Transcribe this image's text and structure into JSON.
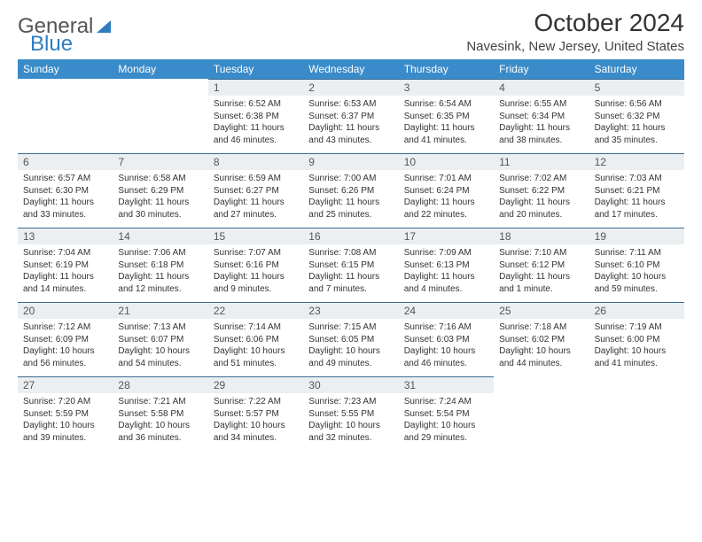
{
  "logo": {
    "part1": "General",
    "part2": "Blue"
  },
  "title": "October 2024",
  "location": "Navesink, New Jersey, United States",
  "colors": {
    "header_bg": "#3a8bc9",
    "header_text": "#ffffff",
    "daynum_bg": "#eceff1",
    "daynum_border": "#3a6c95",
    "text": "#333333",
    "logo_gray": "#555555",
    "logo_blue": "#2f7cc0"
  },
  "days_of_week": [
    "Sunday",
    "Monday",
    "Tuesday",
    "Wednesday",
    "Thursday",
    "Friday",
    "Saturday"
  ],
  "weeks": [
    [
      null,
      null,
      {
        "n": "1",
        "sunrise": "Sunrise: 6:52 AM",
        "sunset": "Sunset: 6:38 PM",
        "daylight": "Daylight: 11 hours and 46 minutes."
      },
      {
        "n": "2",
        "sunrise": "Sunrise: 6:53 AM",
        "sunset": "Sunset: 6:37 PM",
        "daylight": "Daylight: 11 hours and 43 minutes."
      },
      {
        "n": "3",
        "sunrise": "Sunrise: 6:54 AM",
        "sunset": "Sunset: 6:35 PM",
        "daylight": "Daylight: 11 hours and 41 minutes."
      },
      {
        "n": "4",
        "sunrise": "Sunrise: 6:55 AM",
        "sunset": "Sunset: 6:34 PM",
        "daylight": "Daylight: 11 hours and 38 minutes."
      },
      {
        "n": "5",
        "sunrise": "Sunrise: 6:56 AM",
        "sunset": "Sunset: 6:32 PM",
        "daylight": "Daylight: 11 hours and 35 minutes."
      }
    ],
    [
      {
        "n": "6",
        "sunrise": "Sunrise: 6:57 AM",
        "sunset": "Sunset: 6:30 PM",
        "daylight": "Daylight: 11 hours and 33 minutes."
      },
      {
        "n": "7",
        "sunrise": "Sunrise: 6:58 AM",
        "sunset": "Sunset: 6:29 PM",
        "daylight": "Daylight: 11 hours and 30 minutes."
      },
      {
        "n": "8",
        "sunrise": "Sunrise: 6:59 AM",
        "sunset": "Sunset: 6:27 PM",
        "daylight": "Daylight: 11 hours and 27 minutes."
      },
      {
        "n": "9",
        "sunrise": "Sunrise: 7:00 AM",
        "sunset": "Sunset: 6:26 PM",
        "daylight": "Daylight: 11 hours and 25 minutes."
      },
      {
        "n": "10",
        "sunrise": "Sunrise: 7:01 AM",
        "sunset": "Sunset: 6:24 PM",
        "daylight": "Daylight: 11 hours and 22 minutes."
      },
      {
        "n": "11",
        "sunrise": "Sunrise: 7:02 AM",
        "sunset": "Sunset: 6:22 PM",
        "daylight": "Daylight: 11 hours and 20 minutes."
      },
      {
        "n": "12",
        "sunrise": "Sunrise: 7:03 AM",
        "sunset": "Sunset: 6:21 PM",
        "daylight": "Daylight: 11 hours and 17 minutes."
      }
    ],
    [
      {
        "n": "13",
        "sunrise": "Sunrise: 7:04 AM",
        "sunset": "Sunset: 6:19 PM",
        "daylight": "Daylight: 11 hours and 14 minutes."
      },
      {
        "n": "14",
        "sunrise": "Sunrise: 7:06 AM",
        "sunset": "Sunset: 6:18 PM",
        "daylight": "Daylight: 11 hours and 12 minutes."
      },
      {
        "n": "15",
        "sunrise": "Sunrise: 7:07 AM",
        "sunset": "Sunset: 6:16 PM",
        "daylight": "Daylight: 11 hours and 9 minutes."
      },
      {
        "n": "16",
        "sunrise": "Sunrise: 7:08 AM",
        "sunset": "Sunset: 6:15 PM",
        "daylight": "Daylight: 11 hours and 7 minutes."
      },
      {
        "n": "17",
        "sunrise": "Sunrise: 7:09 AM",
        "sunset": "Sunset: 6:13 PM",
        "daylight": "Daylight: 11 hours and 4 minutes."
      },
      {
        "n": "18",
        "sunrise": "Sunrise: 7:10 AM",
        "sunset": "Sunset: 6:12 PM",
        "daylight": "Daylight: 11 hours and 1 minute."
      },
      {
        "n": "19",
        "sunrise": "Sunrise: 7:11 AM",
        "sunset": "Sunset: 6:10 PM",
        "daylight": "Daylight: 10 hours and 59 minutes."
      }
    ],
    [
      {
        "n": "20",
        "sunrise": "Sunrise: 7:12 AM",
        "sunset": "Sunset: 6:09 PM",
        "daylight": "Daylight: 10 hours and 56 minutes."
      },
      {
        "n": "21",
        "sunrise": "Sunrise: 7:13 AM",
        "sunset": "Sunset: 6:07 PM",
        "daylight": "Daylight: 10 hours and 54 minutes."
      },
      {
        "n": "22",
        "sunrise": "Sunrise: 7:14 AM",
        "sunset": "Sunset: 6:06 PM",
        "daylight": "Daylight: 10 hours and 51 minutes."
      },
      {
        "n": "23",
        "sunrise": "Sunrise: 7:15 AM",
        "sunset": "Sunset: 6:05 PM",
        "daylight": "Daylight: 10 hours and 49 minutes."
      },
      {
        "n": "24",
        "sunrise": "Sunrise: 7:16 AM",
        "sunset": "Sunset: 6:03 PM",
        "daylight": "Daylight: 10 hours and 46 minutes."
      },
      {
        "n": "25",
        "sunrise": "Sunrise: 7:18 AM",
        "sunset": "Sunset: 6:02 PM",
        "daylight": "Daylight: 10 hours and 44 minutes."
      },
      {
        "n": "26",
        "sunrise": "Sunrise: 7:19 AM",
        "sunset": "Sunset: 6:00 PM",
        "daylight": "Daylight: 10 hours and 41 minutes."
      }
    ],
    [
      {
        "n": "27",
        "sunrise": "Sunrise: 7:20 AM",
        "sunset": "Sunset: 5:59 PM",
        "daylight": "Daylight: 10 hours and 39 minutes."
      },
      {
        "n": "28",
        "sunrise": "Sunrise: 7:21 AM",
        "sunset": "Sunset: 5:58 PM",
        "daylight": "Daylight: 10 hours and 36 minutes."
      },
      {
        "n": "29",
        "sunrise": "Sunrise: 7:22 AM",
        "sunset": "Sunset: 5:57 PM",
        "daylight": "Daylight: 10 hours and 34 minutes."
      },
      {
        "n": "30",
        "sunrise": "Sunrise: 7:23 AM",
        "sunset": "Sunset: 5:55 PM",
        "daylight": "Daylight: 10 hours and 32 minutes."
      },
      {
        "n": "31",
        "sunrise": "Sunrise: 7:24 AM",
        "sunset": "Sunset: 5:54 PM",
        "daylight": "Daylight: 10 hours and 29 minutes."
      },
      null,
      null
    ]
  ]
}
